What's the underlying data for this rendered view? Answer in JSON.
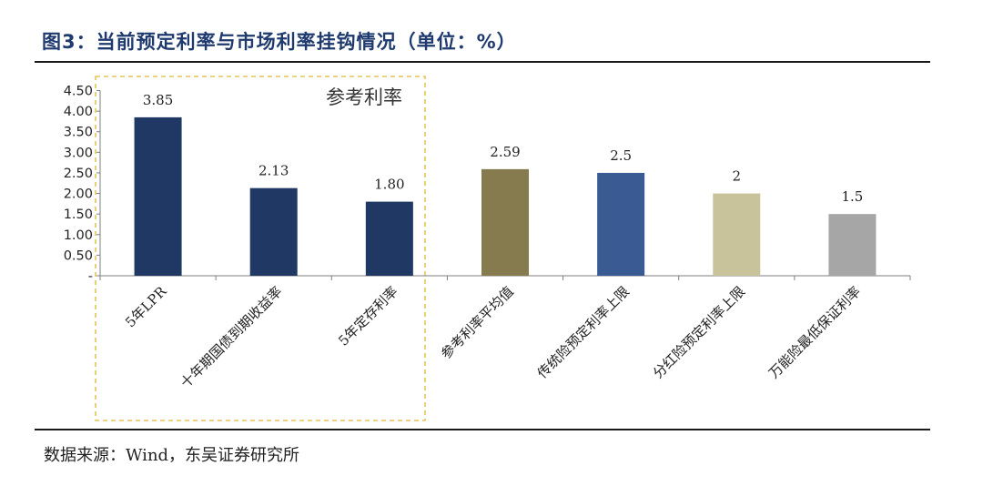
{
  "figure": {
    "title": "图3：当前预定利率与市场利率挂钩情况（单位：%）",
    "source": "数据来源：Wind，东吴证券研究所"
  },
  "chart_data": {
    "type": "bar",
    "categories": [
      "5年LPR",
      "十年期国债到期收益率",
      "5年定存利率",
      "参考利率平均值",
      "传统险预定利率上限",
      "分红险预定利率上限",
      "万能险最低保证利率"
    ],
    "values": [
      3.85,
      2.13,
      1.8,
      2.59,
      2.5,
      2,
      1.5
    ],
    "data_labels": [
      "3.85",
      "2.13",
      "1.80",
      "2.59",
      "2.5",
      "2",
      "1.5"
    ],
    "colors": [
      "#1f3864",
      "#1f3864",
      "#1f3864",
      "#857b4e",
      "#3a5a94",
      "#c9c39b",
      "#a6a6a6"
    ],
    "ylim": [
      0,
      4.5
    ],
    "yticks": [
      0,
      0.5,
      1.0,
      1.5,
      2.0,
      2.5,
      3.0,
      3.5,
      4.0,
      4.5
    ],
    "ytick_labels": [
      "-",
      "0.50",
      "1.00",
      "1.50",
      "2.00",
      "2.50",
      "3.00",
      "3.50",
      "4.00",
      "4.50"
    ],
    "xlabel": "",
    "ylabel": "",
    "grid": false,
    "legend": "none",
    "annotation": {
      "text": "参考利率",
      "group_categories": [
        "5年LPR",
        "十年期国债到期收益率",
        "5年定存利率"
      ],
      "box_color": "#e8c25a"
    }
  }
}
